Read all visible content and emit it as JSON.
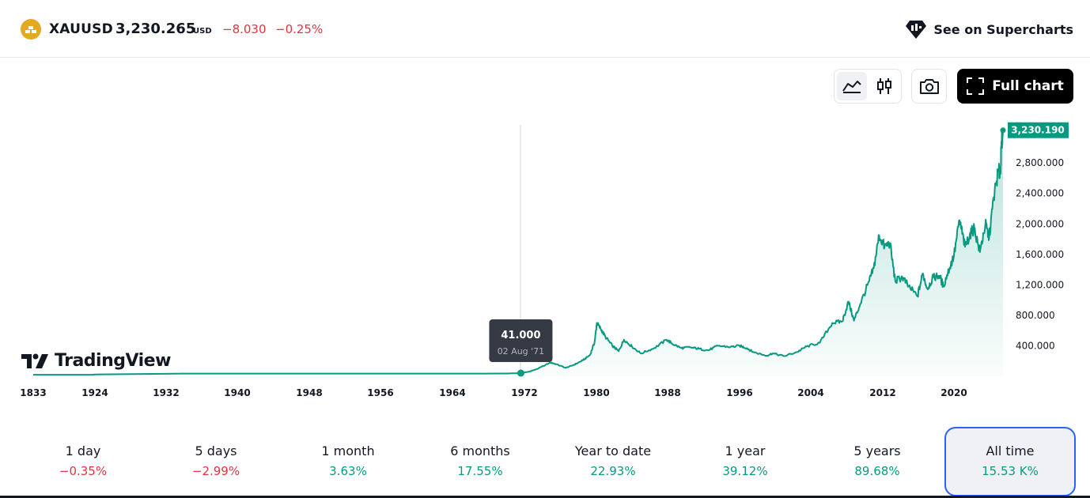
{
  "header": {
    "symbol": "XAUUSD",
    "price": "3,230.265",
    "currency": "USD",
    "change": "−8.030",
    "change_pct": "−0.25%",
    "supercharts_label": "See on Supercharts"
  },
  "toolbar": {
    "area_icon": "area-chart-icon",
    "candle_icon": "candles-icon",
    "camera_icon": "camera-icon",
    "full_chart_label": "Full chart"
  },
  "brand": {
    "name": "TradingView"
  },
  "colors": {
    "line": "#089981",
    "negative": "#e0353f",
    "positive": "#089981",
    "accent": "#2962ff"
  },
  "chart_data": {
    "type": "area",
    "series": [
      {
        "values": [
          [
            1833.0,
            20.0
          ],
          [
            1920.0,
            20.0
          ],
          [
            1934.0,
            35.0
          ],
          [
            1960.0,
            35.0
          ],
          [
            1970.0,
            36.0
          ],
          [
            1971.6,
            41.0
          ],
          [
            1972.5,
            60.0
          ],
          [
            1973.5,
            100.0
          ],
          [
            1974.9,
            180.0
          ],
          [
            1975.5,
            160.0
          ],
          [
            1976.6,
            110.0
          ],
          [
            1977.5,
            150.0
          ],
          [
            1978.5,
            210.0
          ],
          [
            1979.3,
            280.0
          ],
          [
            1979.8,
            450.0
          ],
          [
            1980.05,
            700.0
          ],
          [
            1980.5,
            620.0
          ],
          [
            1981.0,
            520.0
          ],
          [
            1981.8,
            400.0
          ],
          [
            1982.5,
            330.0
          ],
          [
            1983.1,
            480.0
          ],
          [
            1984.0,
            390.0
          ],
          [
            1985.0,
            300.0
          ],
          [
            1986.5,
            370.0
          ],
          [
            1987.9,
            480.0
          ],
          [
            1988.5,
            430.0
          ],
          [
            1989.5,
            370.0
          ],
          [
            1990.5,
            380.0
          ],
          [
            1991.5,
            360.0
          ],
          [
            1992.5,
            340.0
          ],
          [
            1993.6,
            400.0
          ],
          [
            1995.0,
            385.0
          ],
          [
            1996.0,
            400.0
          ],
          [
            1996.8,
            370.0
          ],
          [
            1997.5,
            320.0
          ],
          [
            1999.0,
            270.0
          ],
          [
            1999.7,
            300.0
          ],
          [
            2001.0,
            265.0
          ],
          [
            2002.5,
            320.0
          ],
          [
            2003.5,
            390.0
          ],
          [
            2005.0,
            440.0
          ],
          [
            2006.4,
            700.0
          ],
          [
            2007.5,
            720.0
          ],
          [
            2008.2,
            980.0
          ],
          [
            2008.8,
            730.0
          ],
          [
            2009.5,
            950.0
          ],
          [
            2010.5,
            1250.0
          ],
          [
            2011.0,
            1420.0
          ],
          [
            2011.6,
            1850.0
          ],
          [
            2012.2,
            1700.0
          ],
          [
            2012.8,
            1750.0
          ],
          [
            2013.4,
            1250.0
          ],
          [
            2014.2,
            1300.0
          ],
          [
            2014.9,
            1180.0
          ],
          [
            2015.9,
            1050.0
          ],
          [
            2016.5,
            1350.0
          ],
          [
            2017.0,
            1150.0
          ],
          [
            2017.7,
            1300.0
          ],
          [
            2018.4,
            1320.0
          ],
          [
            2018.8,
            1180.0
          ],
          [
            2019.5,
            1420.0
          ],
          [
            2020.0,
            1580.0
          ],
          [
            2020.6,
            2050.0
          ],
          [
            2021.2,
            1700.0
          ],
          [
            2021.7,
            1850.0
          ],
          [
            2022.2,
            1950.0
          ],
          [
            2022.8,
            1630.0
          ],
          [
            2023.4,
            2000.0
          ],
          [
            2023.8,
            1820.0
          ],
          [
            2024.3,
            2350.0
          ],
          [
            2024.8,
            2700.0
          ],
          [
            2025.0,
            2650.0
          ],
          [
            2025.15,
            3050.0
          ],
          [
            2025.3,
            3230.19
          ]
        ]
      }
    ],
    "x_ticks": [
      "1833",
      "1924",
      "1932",
      "1940",
      "1948",
      "1956",
      "1964",
      "1972",
      "1980",
      "1988",
      "1996",
      "2004",
      "2012",
      "2020"
    ],
    "y_ticks": [
      "400.000",
      "800.000",
      "1,200.000",
      "1,600.000",
      "2,000.000",
      "2,400.000",
      "2,800.000"
    ],
    "last_price_label": "3,230.190",
    "tooltip": {
      "value": "41.000",
      "date": "02 Aug '71"
    },
    "ylim": [
      0,
      3300
    ],
    "grid": false
  },
  "performance": [
    {
      "label": "1 day",
      "value": "−0.35%",
      "sign": "neg"
    },
    {
      "label": "5 days",
      "value": "−2.99%",
      "sign": "neg"
    },
    {
      "label": "1 month",
      "value": "3.63%",
      "sign": "pos"
    },
    {
      "label": "6 months",
      "value": "17.55%",
      "sign": "pos"
    },
    {
      "label": "Year to date",
      "value": "22.93%",
      "sign": "pos"
    },
    {
      "label": "1 year",
      "value": "39.12%",
      "sign": "pos"
    },
    {
      "label": "5 years",
      "value": "89.68%",
      "sign": "pos"
    },
    {
      "label": "All time",
      "value": "15.53 K%",
      "sign": "pos",
      "active": true
    }
  ]
}
